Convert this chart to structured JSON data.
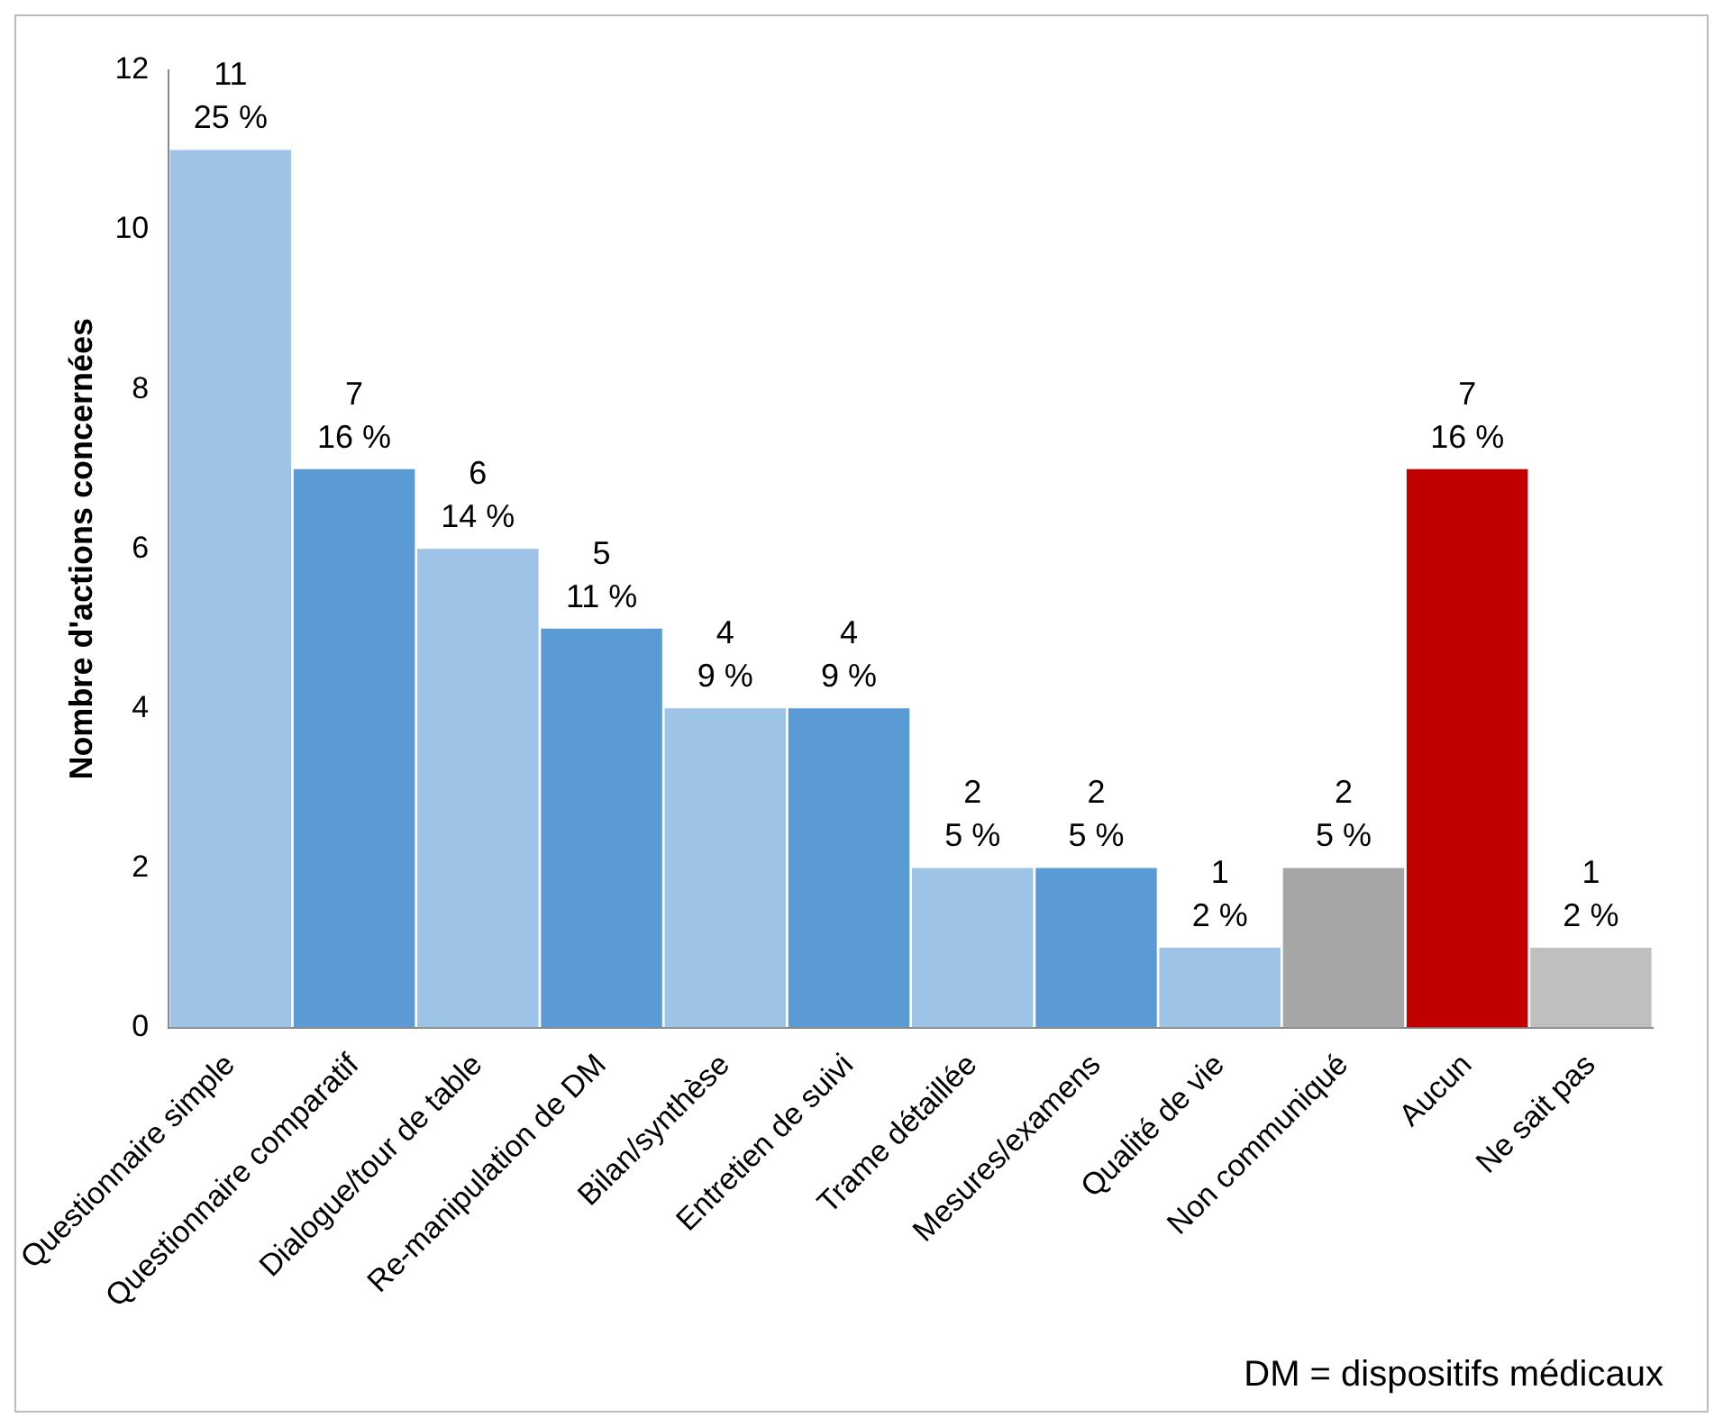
{
  "chart_data": {
    "type": "bar",
    "ylabel": "Nombre d'actions concernées",
    "categories": [
      "Questionnaire simple",
      "Questionnaire comparatif",
      "Dialogue/tour de table",
      "Re-manipulation de DM",
      "Bilan/synthèse",
      "Entretien de suivi",
      "Trame détaillée",
      "Mesures/examens",
      "Qualité de vie",
      "Non communiqué",
      "Aucun",
      "Ne sait pas"
    ],
    "values": [
      11,
      7,
      6,
      5,
      4,
      4,
      2,
      2,
      1,
      2,
      7,
      1
    ],
    "colors": [
      "#9dc3e6",
      "#5b9bd5",
      "#9dc3e6",
      "#5b9bd5",
      "#9dc3e6",
      "#5b9bd5",
      "#9dc3e6",
      "#5b9bd5",
      "#9dc3e6",
      "#a6a6a6",
      "#c00000",
      "#bfbfbf"
    ],
    "value_labels": [
      "11\n25 %",
      "7\n16 %",
      "6\n14 %",
      "5\n11 %",
      "4\n9 %",
      "4\n9 %",
      "2\n5 %",
      "2\n5 %",
      "1\n2 %",
      "2\n5 %",
      "7\n16 %",
      "1\n2 %"
    ],
    "ylim": [
      0,
      12
    ],
    "yticks": [
      0,
      2,
      4,
      6,
      8,
      10,
      12
    ],
    "grid": false,
    "legend": false,
    "annotations": [
      "DM = dispositifs médicaux"
    ]
  }
}
